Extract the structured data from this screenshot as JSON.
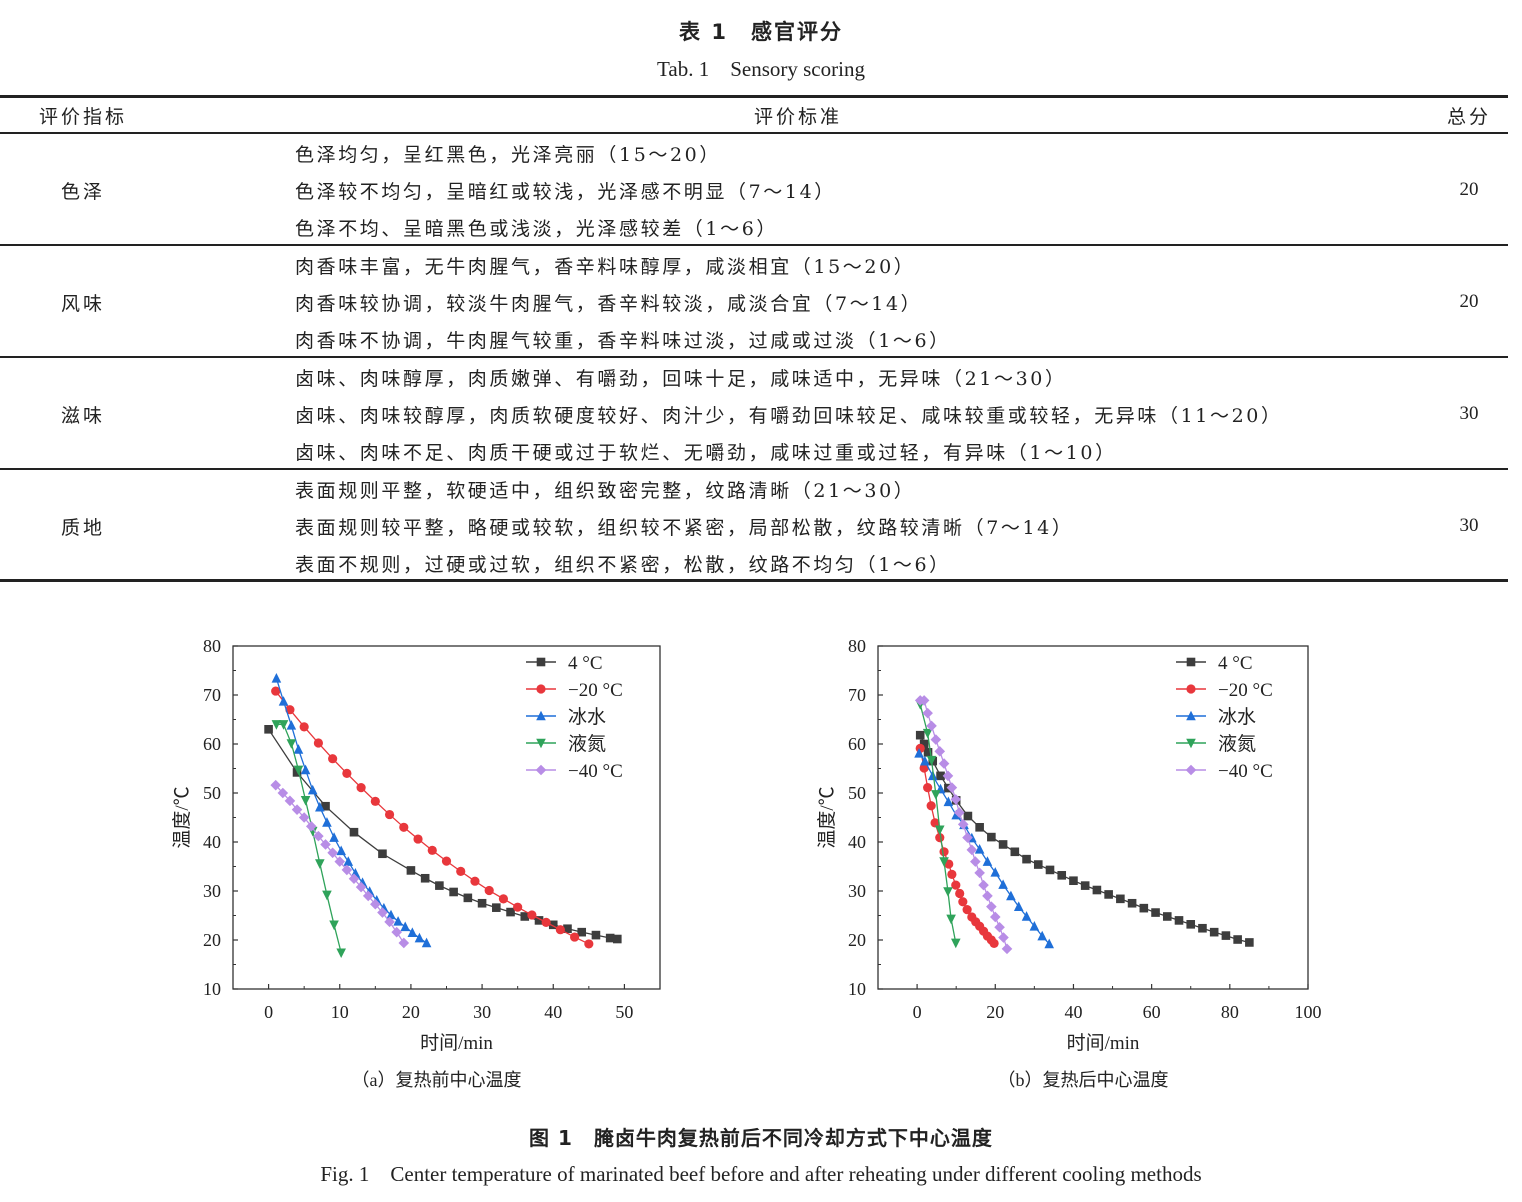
{
  "table": {
    "title": "表 1　感官评分",
    "subtitle": "Tab. 1　Sensory scoring",
    "headers": [
      "评价指标",
      "评价标准",
      "总分"
    ],
    "rows": [
      {
        "indicator": "色泽",
        "criteria": [
          "色泽均匀，呈红黑色，光泽亮丽（15～20）",
          "色泽较不均匀，呈暗红或较浅，光泽感不明显（7～14）",
          "色泽不均、呈暗黑色或浅淡，光泽感较差（1～6）"
        ],
        "total": "20"
      },
      {
        "indicator": "风味",
        "criteria": [
          "肉香味丰富，无牛肉腥气，香辛料味醇厚，咸淡相宜（15～20）",
          "肉香味较协调，较淡牛肉腥气，香辛料较淡，咸淡合宜（7～14）",
          "肉香味不协调，牛肉腥气较重，香辛料味过淡，过咸或过淡（1～6）"
        ],
        "total": "20"
      },
      {
        "indicator": "滋味",
        "criteria": [
          "卤味、肉味醇厚，肉质嫩弹、有嚼劲，回味十足，咸味适中，无异味（21～30）",
          "卤味、肉味较醇厚，肉质软硬度较好、肉汁少，有嚼劲回味较足、咸味较重或较轻，无异味（11～20）",
          "卤味、肉味不足、肉质干硬或过于软烂、无嚼劲，咸味过重或过轻，有异味（1～10）"
        ],
        "total": "30"
      },
      {
        "indicator": "质地",
        "criteria": [
          "表面规则平整，软硬适中，组织致密完整，纹路清晰（21～30）",
          "表面规则较平整，略硬或较软，组织较不紧密，局部松散，纹路较清晰（7～14）",
          "表面不规则，过硬或过软，组织不紧密，松散，纹路不均匀（1～6）"
        ],
        "total": "30"
      }
    ]
  },
  "figure": {
    "title": "图 1　腌卤牛肉复热前后不同冷却方式下中心温度",
    "subtitle": "Fig. 1　Center temperature of marinated beef before and after reheating under different cooling methods"
  },
  "colors": {
    "4C": "#3d3d3d",
    "m20C": "#e8373c",
    "ice": "#1f6fd8",
    "ln2": "#2fa35a",
    "m40C": "#b88de6"
  },
  "chart_data": [
    {
      "type": "line",
      "caption": "（a）复热前中心温度",
      "xlabel": "时间/min",
      "ylabel": "温度/℃",
      "xlim": [
        -5,
        55
      ],
      "ylim": [
        10,
        80
      ],
      "xticks": [
        0,
        10,
        20,
        30,
        40,
        50
      ],
      "yticks": [
        10,
        20,
        30,
        40,
        50,
        60,
        70,
        80
      ],
      "legend_position": "top-right",
      "series": [
        {
          "name": "4 °C",
          "marker": "square",
          "color_key": "4C",
          "x": [
            0,
            4,
            8,
            12,
            16,
            20,
            22,
            24,
            26,
            28,
            30,
            32,
            34,
            36,
            38,
            40,
            42,
            44,
            46,
            48,
            49
          ],
          "y": [
            63,
            54.2,
            47.3,
            42,
            37.6,
            34.2,
            32.6,
            31.1,
            29.8,
            28.6,
            27.5,
            26.6,
            25.7,
            24.8,
            24,
            23.1,
            22.3,
            21.6,
            21,
            20.4,
            20.2
          ]
        },
        {
          "name": "−20 °C",
          "marker": "circle",
          "color_key": "m20C",
          "x": [
            1,
            3,
            5,
            7,
            9,
            11,
            13,
            15,
            17,
            19,
            21,
            23,
            25,
            27,
            29,
            31,
            33,
            35,
            37,
            39,
            41,
            43,
            45
          ],
          "y": [
            70.8,
            67,
            63.5,
            60.2,
            57,
            54,
            51.1,
            48.3,
            45.6,
            43,
            40.6,
            38.3,
            36.1,
            34,
            32,
            30.1,
            28.4,
            26.7,
            25.1,
            23.6,
            22.1,
            20.6,
            19.2
          ]
        },
        {
          "name": "冰水",
          "marker": "triangle-up",
          "color_key": "ice",
          "x": [
            1.1,
            2.1,
            3.2,
            4.2,
            5.2,
            6.2,
            7.2,
            8.2,
            9.2,
            10.2,
            11.2,
            12.2,
            13.2,
            14.2,
            15.2,
            16.2,
            17.2,
            18.2,
            19.2,
            20.2,
            21.2,
            22.2
          ],
          "y": [
            73.4,
            68.7,
            63.8,
            58.9,
            54.7,
            50.6,
            47.1,
            44,
            40.9,
            38.2,
            36,
            33.6,
            31.7,
            29.9,
            28.1,
            26.5,
            25.1,
            23.8,
            22.7,
            21.5,
            20.4,
            19.4
          ]
        },
        {
          "name": "液氮",
          "marker": "triangle-down",
          "color_key": "ln2",
          "x": [
            1.1,
            2.1,
            3.2,
            4.2,
            5.2,
            6.2,
            7.2,
            8.2,
            9.2,
            10.2
          ],
          "y": [
            64,
            64,
            60.1,
            54.7,
            48.5,
            42.2,
            35.6,
            29.2,
            23.1,
            17.4
          ]
        },
        {
          "name": "−40 °C",
          "marker": "diamond",
          "color_key": "m40C",
          "x": [
            1,
            2,
            3,
            4,
            5,
            6,
            7,
            8,
            9,
            10,
            11,
            12,
            13,
            14,
            15,
            16,
            17,
            18,
            19
          ],
          "y": [
            51.6,
            50,
            48.4,
            46.6,
            45,
            43.2,
            41.2,
            39.5,
            37.8,
            36,
            34.3,
            32.5,
            30.8,
            29,
            27.3,
            25.6,
            23.7,
            21.6,
            19.4
          ]
        }
      ]
    },
    {
      "type": "line",
      "caption": "（b）复热后中心温度",
      "xlabel": "时间/min",
      "ylabel": "温度/℃",
      "xlim": [
        -10,
        100
      ],
      "ylim": [
        10,
        80
      ],
      "xticks": [
        0,
        20,
        40,
        60,
        80,
        100
      ],
      "yticks": [
        10,
        20,
        30,
        40,
        50,
        60,
        70,
        80
      ],
      "legend_position": "top-right",
      "series": [
        {
          "name": "4 °C",
          "marker": "square",
          "color_key": "4C",
          "x": [
            0.8,
            1.8,
            2.8,
            4,
            6,
            8,
            10,
            13,
            16,
            19,
            22,
            25,
            28,
            31,
            34,
            37,
            40,
            43,
            46,
            49,
            52,
            55,
            58,
            61,
            64,
            67,
            70,
            73,
            76,
            79,
            82,
            85
          ],
          "y": [
            61.8,
            60,
            58.3,
            56.5,
            53.5,
            51,
            48.5,
            45.3,
            43,
            41,
            39.5,
            38,
            36.5,
            35.4,
            34.3,
            33.2,
            32.1,
            31.1,
            30.2,
            29.3,
            28.4,
            27.5,
            26.5,
            25.6,
            24.8,
            24,
            23.2,
            22.4,
            21.6,
            20.9,
            20.1,
            19.5
          ]
        },
        {
          "name": "−20 °C",
          "marker": "circle",
          "color_key": "m20C",
          "x": [
            0.8,
            1.8,
            2.7,
            3.6,
            4.6,
            5.8,
            6.9,
            8.1,
            8.9,
            9.9,
            10.9,
            11.7,
            12.8,
            14,
            15,
            16,
            17,
            18,
            19,
            19.7
          ],
          "y": [
            59.1,
            55.1,
            51.1,
            47.4,
            43.9,
            40.9,
            38,
            35.5,
            33.4,
            31.2,
            29.5,
            27.8,
            26.2,
            24.7,
            23.7,
            22.8,
            21.8,
            20.8,
            20,
            19.3
          ]
        },
        {
          "name": "冰水",
          "marker": "triangle-up",
          "color_key": "ice",
          "x": [
            0.5,
            2,
            4,
            6,
            8,
            10,
            12,
            14,
            16,
            18,
            20,
            22,
            24,
            26,
            28,
            30,
            32,
            33.8
          ],
          "y": [
            58.1,
            56.5,
            53.5,
            50.8,
            48.2,
            45.5,
            43.5,
            40.8,
            38.5,
            36,
            33.8,
            31.3,
            29,
            26.8,
            24.8,
            22.8,
            20.8,
            19.2
          ]
        },
        {
          "name": "液氮",
          "marker": "triangle-down",
          "color_key": "ln2",
          "x": [
            0.8,
            2.7,
            3.7,
            4.8,
            5.8,
            6.9,
            7.9,
            8.7,
            9.9
          ],
          "y": [
            68.1,
            62.2,
            56.7,
            49.7,
            42.5,
            36,
            29.9,
            24.3,
            19.4
          ]
        },
        {
          "name": "−40 °C",
          "marker": "diamond",
          "color_key": "m40C",
          "x": [
            0.8,
            1.8,
            2.7,
            3.7,
            4.8,
            5.8,
            6.9,
            7.9,
            8.9,
            9.9,
            10.8,
            11.8,
            12.9,
            14,
            14.9,
            16,
            17,
            18,
            19,
            20,
            21.1,
            22.1,
            23
          ],
          "y": [
            68.9,
            68.9,
            66.3,
            63.7,
            60.9,
            58.5,
            56,
            53.5,
            51.1,
            48.7,
            46,
            43.6,
            40.9,
            38.4,
            36,
            33.7,
            31.2,
            29,
            26.8,
            24.7,
            22.6,
            20.5,
            18.2
          ]
        }
      ]
    }
  ]
}
